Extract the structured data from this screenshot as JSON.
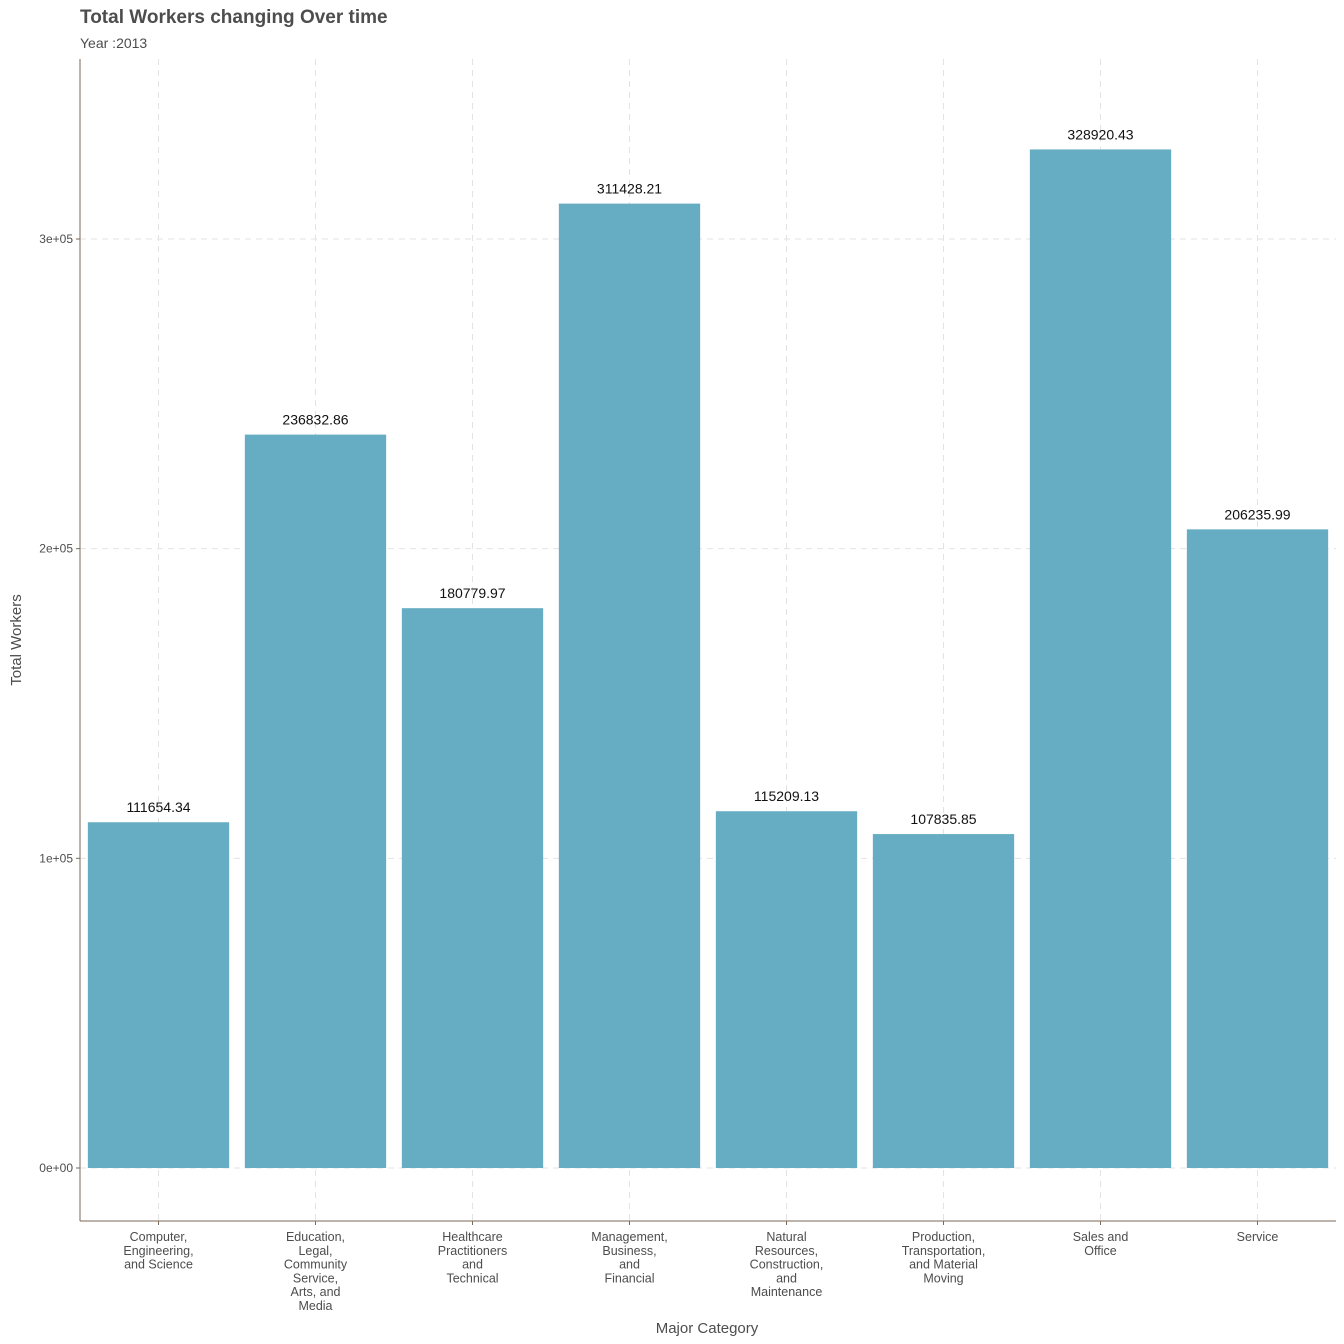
{
  "chart_data": {
    "type": "bar",
    "title": "Total Workers changing Over time",
    "subtitle": "Year :2013",
    "xlabel": "Major Category",
    "ylabel": "Total Workers",
    "ylim": [
      -16000,
      350000
    ],
    "yticks": [
      0,
      100000,
      200000,
      300000
    ],
    "ytick_labels": [
      "0e+00",
      "1e+05",
      "2e+05",
      "3e+05"
    ],
    "grid": true,
    "categories": [
      [
        "Computer,",
        "Engineering,",
        "and Science"
      ],
      [
        "Education,",
        "Legal,",
        "Community",
        "Service,",
        "Arts, and",
        "Media"
      ],
      [
        "Healthcare",
        "Practitioners",
        "and",
        "Technical"
      ],
      [
        "Management,",
        "Business,",
        "and",
        "Financial"
      ],
      [
        "Natural",
        "Resources,",
        "Construction,",
        "and",
        "Maintenance"
      ],
      [
        "Production,",
        "Transportation,",
        "and Material",
        "Moving"
      ],
      [
        "Sales and",
        "Office"
      ],
      [
        "Service"
      ]
    ],
    "values": [
      111654.34,
      236832.86,
      180779.97,
      311428.21,
      115209.13,
      107835.85,
      328920.43,
      206235.99
    ],
    "value_labels": [
      "111654.34",
      "236832.86",
      "180779.97",
      "311428.21",
      "115209.13",
      "107835.85",
      "328920.43",
      "206235.99"
    ],
    "bar_color": "#66acc2"
  }
}
